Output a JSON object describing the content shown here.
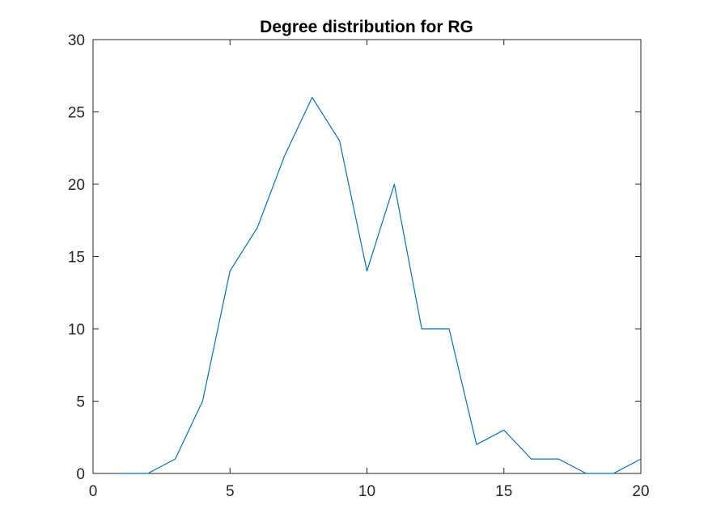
{
  "chart_data": {
    "type": "line",
    "title": "Degree distribution for RG",
    "xlabel": "",
    "ylabel": "",
    "xlim": [
      0,
      20
    ],
    "ylim": [
      0,
      30
    ],
    "xticks": [
      0,
      5,
      10,
      15,
      20
    ],
    "yticks": [
      0,
      5,
      10,
      15,
      20,
      25,
      30
    ],
    "xtick_labels": [
      "0",
      "5",
      "10",
      "15",
      "20"
    ],
    "ytick_labels": [
      "0",
      "5",
      "10",
      "15",
      "20",
      "25",
      "30"
    ],
    "grid": false,
    "legend": "none",
    "series": [
      {
        "color": "#0072BD",
        "x": [
          1,
          2,
          3,
          4,
          5,
          6,
          7,
          8,
          9,
          10,
          11,
          12,
          13,
          14,
          15,
          16,
          17,
          18,
          19,
          20
        ],
        "y": [
          0,
          0,
          1,
          5,
          14,
          17,
          22,
          26,
          23,
          14,
          20,
          10,
          10,
          2,
          3,
          1,
          1,
          0,
          0,
          1
        ]
      }
    ]
  }
}
